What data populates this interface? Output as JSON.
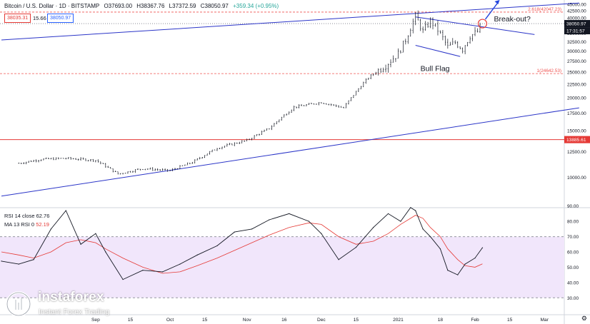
{
  "header": {
    "symbol": "Bitcoin / U.S. Dollar · 1D · BITSTAMP",
    "open": "O37693.00",
    "high": "H38367.76",
    "low": "L37372.59",
    "close": "C38050.97",
    "change": "+359.34 (+0.95%)",
    "bid": "38035.31",
    "spread": "15.66",
    "ask": "38050.97"
  },
  "indicators": {
    "rsi_label": "RSI 14 close",
    "rsi_value": "62.76",
    "ma_label": "MA 13 RSI 0",
    "ma_value": "52.19"
  },
  "annotations": {
    "breakout": "Break-out?",
    "flag": "Bull Flag",
    "fib_upper": "2.618(42047.23)",
    "fib_lower": "1(24642.53)"
  },
  "price_tags": {
    "last": "38050.97",
    "countdown": "17:31:57",
    "support": "13885.61"
  },
  "watermark": {
    "name": "instaforex",
    "tagline": "Instant Forex Trading"
  },
  "timezone_icon": "gear-icon",
  "colors": {
    "candle": "#131722",
    "channel": "#2b35c8",
    "support_line": "#e53935",
    "fib_line": "#ef5350",
    "rsi_line": "#131722",
    "rsi_ma": "#e53935",
    "rsi_band": "#f1e6fb",
    "arrow": "#2244dd",
    "circle": "#e53935"
  },
  "chart_data": [
    {
      "type": "candlestick",
      "title": "Bitcoin / U.S. Dollar · 1D · BITSTAMP",
      "x": [
        "2020-08-01",
        "2020-08-10",
        "2020-08-20",
        "2020-09-01",
        "2020-09-10",
        "2020-09-20",
        "2020-10-01",
        "2020-10-10",
        "2020-10-20",
        "2020-11-01",
        "2020-11-10",
        "2020-11-20",
        "2020-12-01",
        "2020-12-10",
        "2020-12-20",
        "2020-12-27",
        "2021-01-01",
        "2021-01-04",
        "2021-01-08",
        "2021-01-11",
        "2021-01-14",
        "2021-01-17",
        "2021-01-21",
        "2021-01-24",
        "2021-01-27",
        "2021-01-30",
        "2021-02-02",
        "2021-02-04"
      ],
      "close": [
        11300,
        11700,
        11800,
        11600,
        10300,
        10800,
        10600,
        11400,
        12900,
        13800,
        15300,
        18400,
        19200,
        18300,
        23800,
        26500,
        29300,
        33000,
        40500,
        35500,
        39000,
        36000,
        31000,
        32300,
        30500,
        34200,
        35400,
        38050
      ],
      "ylim": [
        8000,
        45000
      ],
      "y_ticks": [
        10000,
        12500,
        15000,
        17500,
        20000,
        22500,
        25000,
        27500,
        30000,
        32500,
        35000,
        37500,
        40000,
        42500,
        45000
      ],
      "x_tick_labels": [
        "Sep",
        "15",
        "Oct",
        "15",
        "Nov",
        "16",
        "Dec",
        "15",
        "2021",
        "18",
        "Feb",
        "15",
        "Mar"
      ],
      "horizontal_lines": [
        {
          "label": "2.618(42047.23)",
          "value": 42047.23,
          "style": "dashed"
        },
        {
          "label": "1(24642.53)",
          "value": 24642.53,
          "style": "dashed"
        },
        {
          "label": "13885.61",
          "value": 13885.61,
          "style": "solid"
        },
        {
          "label": "38050.97",
          "value": 38050.97,
          "style": "dotted"
        }
      ],
      "trendlines": [
        {
          "name": "channel upper",
          "from": [
            "2020-07-25",
            33000
          ],
          "to": [
            "2021-03-15",
            45500
          ]
        },
        {
          "name": "channel lower",
          "from": [
            "2020-07-25",
            8500
          ],
          "to": [
            "2021-03-15",
            18300
          ]
        },
        {
          "name": "flag upper",
          "from": [
            "2021-01-08",
            40300
          ],
          "to": [
            "2021-02-25",
            34600
          ]
        },
        {
          "name": "flag lower",
          "from": [
            "2021-01-08",
            31500
          ],
          "to": [
            "2021-01-26",
            28600
          ]
        }
      ]
    },
    {
      "type": "line",
      "title": "RSI 14 close",
      "x": [
        "2020-07-25",
        "2020-08-01",
        "2020-08-07",
        "2020-08-14",
        "2020-08-20",
        "2020-08-26",
        "2020-09-01",
        "2020-09-05",
        "2020-09-12",
        "2020-09-20",
        "2020-09-28",
        "2020-10-05",
        "2020-10-12",
        "2020-10-20",
        "2020-10-27",
        "2020-11-03",
        "2020-11-10",
        "2020-11-18",
        "2020-11-26",
        "2020-12-01",
        "2020-12-08",
        "2020-12-15",
        "2020-12-22",
        "2020-12-28",
        "2021-01-02",
        "2021-01-06",
        "2021-01-08",
        "2021-01-11",
        "2021-01-14",
        "2021-01-18",
        "2021-01-21",
        "2021-01-25",
        "2021-01-28",
        "2021-02-01",
        "2021-02-04"
      ],
      "series": [
        {
          "name": "RSI 14 close",
          "values": [
            54,
            52,
            55,
            75,
            87,
            65,
            72,
            60,
            42,
            48,
            47,
            52,
            58,
            64,
            73,
            75,
            81,
            85,
            80,
            72,
            55,
            63,
            76,
            85,
            80,
            89,
            87,
            75,
            70,
            62,
            48,
            45,
            52,
            56,
            62.76
          ]
        },
        {
          "name": "MA 13 RSI 0",
          "values": [
            60,
            58,
            56,
            60,
            66,
            68,
            66,
            62,
            56,
            50,
            46,
            47,
            51,
            56,
            61,
            66,
            71,
            76,
            79,
            78,
            70,
            65,
            67,
            72,
            78,
            82,
            84,
            82,
            76,
            70,
            62,
            55,
            51,
            50,
            52.19
          ]
        }
      ],
      "ylim": [
        25,
        95
      ],
      "y_ticks": [
        30,
        40,
        50,
        60,
        70,
        80,
        90
      ],
      "band": [
        30,
        70
      ]
    }
  ]
}
